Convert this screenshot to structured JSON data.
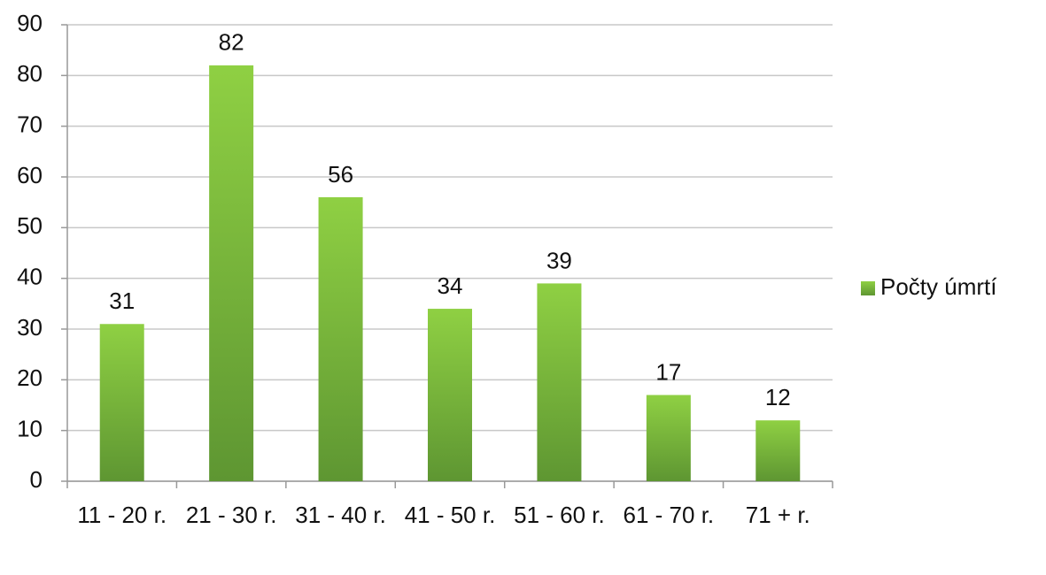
{
  "chart_data": {
    "type": "bar",
    "categories": [
      "11 - 20 r.",
      "21 - 30 r.",
      "31 - 40 r.",
      "41 - 50 r.",
      "51 - 60 r.",
      "61 - 70 r.",
      "71 + r."
    ],
    "series": [
      {
        "name": "Počty úmrtí",
        "color": "#77b73a",
        "values": [
          31,
          82,
          56,
          34,
          39,
          17,
          12
        ]
      }
    ],
    "ylim": [
      0,
      90
    ],
    "yticks": [
      0,
      10,
      20,
      30,
      40,
      50,
      60,
      70,
      80,
      90
    ],
    "grid": true,
    "legend": "right"
  }
}
